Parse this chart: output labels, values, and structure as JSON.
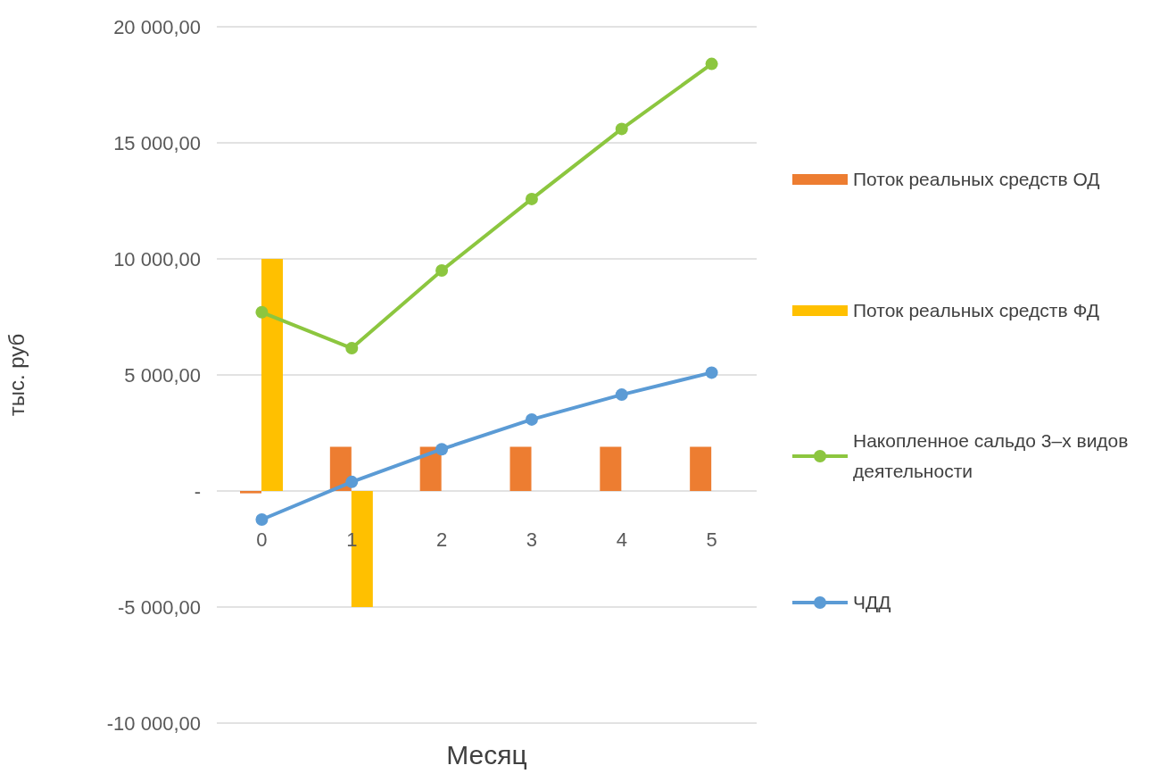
{
  "chart_data": {
    "type": "bar",
    "categories": [
      "0",
      "1",
      "2",
      "3",
      "4",
      "5"
    ],
    "series": [
      {
        "name": "Поток реальных средств ОД",
        "color": "#ed7d31",
        "values": [
          -100,
          1900,
          1900,
          1900,
          1900,
          1900
        ]
      },
      {
        "name": "Поток реальных средств ФД",
        "color": "#ffc000",
        "values": [
          10000,
          -5000,
          0,
          0,
          0,
          0
        ]
      },
      {
        "name": "Накопленное сальдо 3–х видов деятельности",
        "type": "line",
        "color": "#8cc63f",
        "values": [
          7700,
          6150,
          9500,
          12580,
          15600,
          18400
        ]
      },
      {
        "name": "ЧДД",
        "type": "line",
        "color": "#5b9bd5",
        "values": [
          -1230,
          390,
          1800,
          3080,
          4150,
          5100
        ]
      }
    ],
    "xlabel": "Месяц",
    "ylabel": "тыс. руб",
    "ylim": [
      -10000,
      20000
    ],
    "yticks": [
      {
        "value": -10000,
        "label": "-10 000,00"
      },
      {
        "value": -5000,
        "label": "-5 000,00"
      },
      {
        "value": 0,
        "label": "-"
      },
      {
        "value": 5000,
        "label": "5 000,00"
      },
      {
        "value": 10000,
        "label": "10 000,00"
      },
      {
        "value": 15000,
        "label": "15 000,00"
      },
      {
        "value": 20000,
        "label": "20 000,00"
      }
    ],
    "grid": "y",
    "legend": "right",
    "marker": "circle",
    "line_style": "solid"
  }
}
